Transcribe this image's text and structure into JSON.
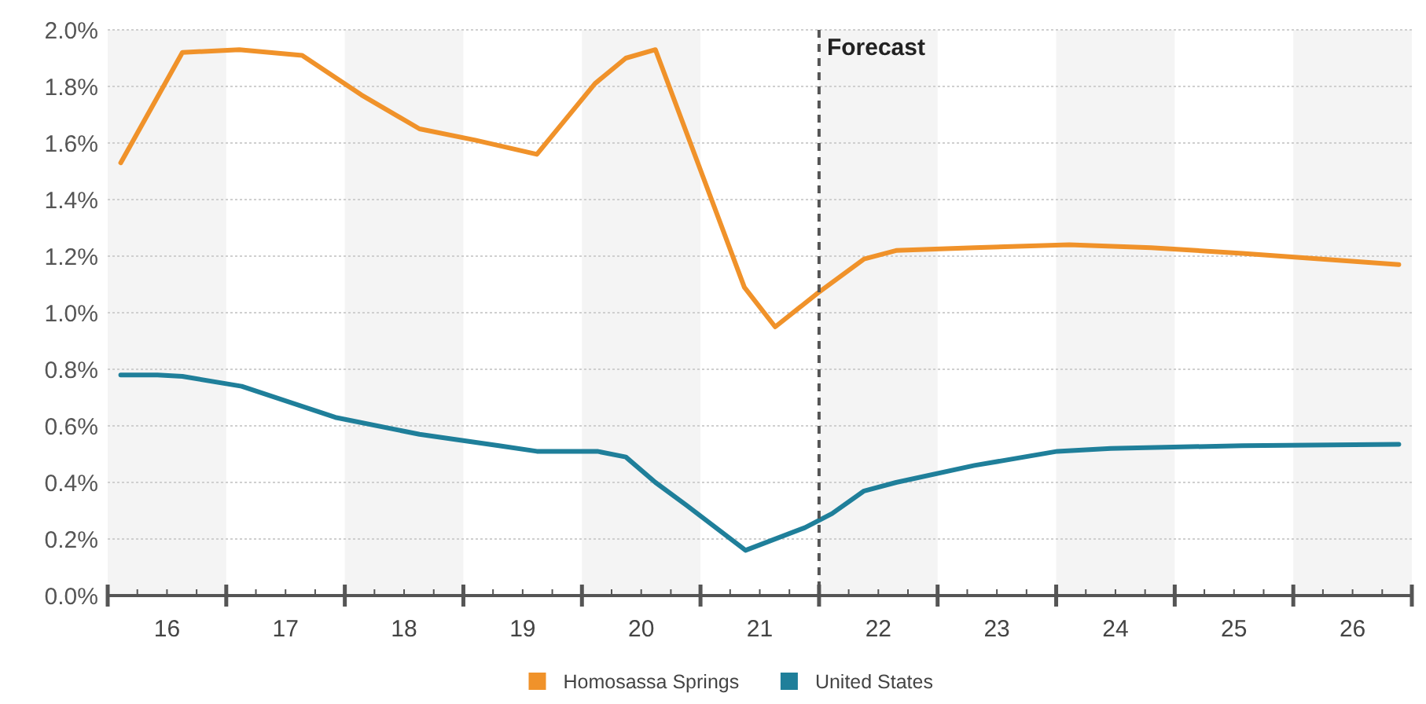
{
  "chart_data": {
    "type": "line",
    "legend": "bottom",
    "grid": "y",
    "line_style": "solid",
    "marker": "none",
    "xlim": [
      15.5,
      26.5
    ],
    "ylim": [
      0,
      2
    ],
    "yticks": [
      {
        "value": 0,
        "label": "0.0%"
      },
      {
        "value": 0.2,
        "label": "0.2%"
      },
      {
        "value": 0.4,
        "label": "0.4%"
      },
      {
        "value": 0.6,
        "label": "0.6%"
      },
      {
        "value": 0.8,
        "label": "0.8%"
      },
      {
        "value": 1,
        "label": "1.0%"
      },
      {
        "value": 1.2,
        "label": "1.2%"
      },
      {
        "value": 1.4,
        "label": "1.4%"
      },
      {
        "value": 1.6,
        "label": "1.6%"
      },
      {
        "value": 1.8,
        "label": "1.8%"
      },
      {
        "value": 2,
        "label": "2.0%"
      }
    ],
    "xticks": [
      {
        "value": 15.5,
        "label": null
      },
      {
        "value": 15.75,
        "label": null
      },
      16,
      {
        "value": 16.25,
        "label": null
      },
      {
        "value": 16.5,
        "label": null
      },
      {
        "value": 16.75,
        "label": null
      },
      17,
      {
        "value": 17.25,
        "label": null
      },
      {
        "value": 17.5,
        "label": null
      },
      {
        "value": 17.75,
        "label": null
      },
      18,
      {
        "value": 18.25,
        "label": null
      },
      {
        "value": 18.5,
        "label": null
      },
      {
        "value": 18.75,
        "label": null
      },
      19,
      {
        "value": 19.25,
        "label": null
      },
      {
        "value": 19.5,
        "label": null
      },
      {
        "value": 19.75,
        "label": null
      },
      20,
      {
        "value": 20.25,
        "label": null
      },
      {
        "value": 20.5,
        "label": null
      },
      {
        "value": 20.75,
        "label": null
      },
      21,
      {
        "value": 21.25,
        "label": null
      },
      {
        "value": 21.5,
        "label": null
      },
      {
        "value": 21.75,
        "label": null
      },
      22,
      {
        "value": 22.25,
        "label": null
      },
      {
        "value": 22.5,
        "label": null
      },
      {
        "value": 22.75,
        "label": null
      },
      23,
      {
        "value": 23.25,
        "label": null
      },
      {
        "value": 23.5,
        "label": null
      },
      {
        "value": 23.75,
        "label": null
      },
      24,
      {
        "value": 24.25,
        "label": null
      },
      {
        "value": 24.5,
        "label": null
      },
      {
        "value": 24.75,
        "label": null
      },
      25,
      {
        "value": 25.25,
        "label": null
      },
      {
        "value": 25.5,
        "label": null
      },
      {
        "value": 25.75,
        "label": null
      },
      26,
      {
        "value": 26.25,
        "label": null
      },
      {
        "value": 26.5,
        "label": null
      }
    ],
    "bands": [
      {
        "axis": "x",
        "from": 15.5,
        "to": 16.5,
        "color": "#f4f4f4"
      },
      {
        "axis": "x",
        "from": 17.5,
        "to": 18.5,
        "color": "#f4f4f4"
      },
      {
        "axis": "x",
        "from": 19.5,
        "to": 20.5,
        "color": "#f4f4f4"
      },
      {
        "axis": "x",
        "from": 21.5,
        "to": 22.5,
        "color": "#f4f4f4"
      },
      {
        "axis": "x",
        "from": 23.5,
        "to": 24.5,
        "color": "#f4f4f4"
      },
      {
        "axis": "x",
        "from": 25.5,
        "to": 26.5,
        "color": "#f4f4f4"
      }
    ],
    "ref_lines": [
      {
        "axis": "x",
        "value": 21.5,
        "label": "Forecast",
        "color": "#555555",
        "line_style": "dashed"
      }
    ],
    "series": [
      {
        "name": "Homosassa Springs",
        "color": "#f0922a",
        "x": [
          15.61,
          16.13,
          16.61,
          17.14,
          17.64,
          18.13,
          18.6,
          19.12,
          19.61,
          19.87,
          20.12,
          20.87,
          21.13,
          21.49,
          21.88,
          22.15,
          22.81,
          23.61,
          24.3,
          25.07,
          26.39
        ],
        "values": [
          1.53,
          1.92,
          1.93,
          1.91,
          1.77,
          1.65,
          1.61,
          1.56,
          1.81,
          1.9,
          1.93,
          1.09,
          0.95,
          1.07,
          1.19,
          1.22,
          1.23,
          1.24,
          1.23,
          1.21,
          1.17
        ]
      },
      {
        "name": "United States",
        "color": "#1f7f9a",
        "x": [
          15.61,
          15.92,
          16.13,
          16.63,
          17.42,
          18.13,
          18.8,
          19.12,
          19.63,
          19.87,
          20.12,
          20.38,
          20.88,
          21.38,
          21.61,
          21.88,
          22.15,
          22.81,
          23.51,
          23.96,
          25.07,
          26.39
        ],
        "values": [
          0.78,
          0.78,
          0.775,
          0.74,
          0.63,
          0.57,
          0.53,
          0.51,
          0.51,
          0.49,
          0.4,
          0.32,
          0.16,
          0.24,
          0.29,
          0.37,
          0.4,
          0.46,
          0.51,
          0.52,
          0.53,
          0.535
        ]
      }
    ]
  }
}
